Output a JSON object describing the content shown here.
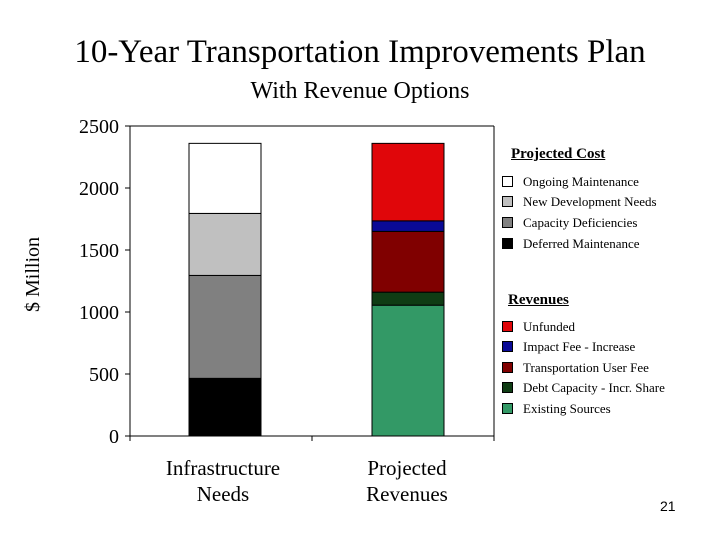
{
  "title": "10-Year Transportation Improvements Plan",
  "subtitle": "With Revenue Options",
  "page_number": "21",
  "colors": {
    "ongoing_maintenance": "#ffffff",
    "new_development_needs": "#c0c0c0",
    "capacity_deficiencies": "#808080",
    "deferred_maintenance": "#000000",
    "unfunded": "#e0060a",
    "impact_fee": "#0a0a96",
    "transportation_user_fee": "#800000",
    "debt_capacity": "#0f3c14",
    "existing_sources": "#339966"
  },
  "chart_data": {
    "type": "bar",
    "stacked": true,
    "ylabel": "$ Million",
    "ylim": [
      0,
      2500
    ],
    "yticks": [
      0,
      500,
      1000,
      1500,
      2000,
      2500
    ],
    "categories": [
      "Infrastructure\nNeeds",
      "Projected\nRevenues"
    ],
    "legend_groups": [
      {
        "title": "Projected Cost",
        "series": [
          {
            "name": "Ongoing Maintenance",
            "category": 0,
            "value": 565
          },
          {
            "name": "New Development Needs",
            "category": 0,
            "value": 500
          },
          {
            "name": "Capacity Deficiencies",
            "category": 0,
            "value": 830
          },
          {
            "name": "Deferred Maintenance",
            "category": 0,
            "value": 465
          }
        ]
      },
      {
        "title": "Revenues",
        "series": [
          {
            "name": "Unfunded",
            "category": 1,
            "value": 625
          },
          {
            "name": "Impact Fee - Increase",
            "category": 1,
            "value": 85
          },
          {
            "name": "Transportation User Fee",
            "category": 1,
            "value": 490
          },
          {
            "name": "Debt Capacity - Incr. Share",
            "category": 1,
            "value": 105
          },
          {
            "name": "Existing Sources",
            "category": 1,
            "value": 1055
          }
        ]
      }
    ]
  }
}
